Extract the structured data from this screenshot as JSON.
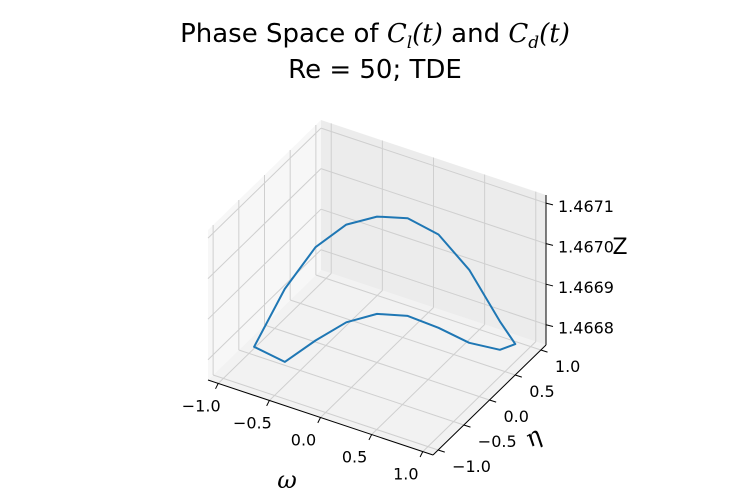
{
  "chart_data": {
    "type": "line",
    "projection": "3d",
    "title": {
      "line1": {
        "prefix": "Phase Space of ",
        "v1": "C",
        "s1": "l",
        "t1": "(t)",
        "mid": " and ",
        "v2": "C",
        "s2": "d",
        "t2": "(t)"
      },
      "line2": "Re = 50; TDE"
    },
    "xlabel": "ω",
    "ylabel": "η",
    "zlabel": "Z",
    "xlim": [
      -1.1,
      1.1
    ],
    "ylim": [
      -1.1,
      1.1
    ],
    "zlim": [
      1.46675,
      1.46712
    ],
    "xticks": [
      {
        "value": -1.0,
        "label": "−1.0"
      },
      {
        "value": -0.5,
        "label": "−0.5"
      },
      {
        "value": 0.0,
        "label": "0.0"
      },
      {
        "value": 0.5,
        "label": "0.5"
      },
      {
        "value": 1.0,
        "label": "1.0"
      }
    ],
    "yticks": [
      {
        "value": -1.0,
        "label": "−1.0"
      },
      {
        "value": -0.5,
        "label": "−0.5"
      },
      {
        "value": 0.0,
        "label": "0.0"
      },
      {
        "value": 0.5,
        "label": "0.5"
      },
      {
        "value": 1.0,
        "label": "1.0"
      }
    ],
    "zticks": [
      {
        "value": 1.4668,
        "label": "1.4668"
      },
      {
        "value": 1.4669,
        "label": "1.4669"
      },
      {
        "value": 1.467,
        "label": "1.4670"
      },
      {
        "value": 1.4671,
        "label": "1.4671"
      }
    ],
    "grid": true,
    "series": [
      {
        "color": "#1f77b4",
        "points": [
          {
            "x": -0.8,
            "y": -0.8,
            "z": 1.46682
          },
          {
            "x": -0.6,
            "y": -0.6,
            "z": 1.466955
          },
          {
            "x": -0.4,
            "y": -0.4,
            "z": 1.46705
          },
          {
            "x": -0.2,
            "y": -0.2,
            "z": 1.467098
          },
          {
            "x": 0.0,
            "y": 0.0,
            "z": 1.46711
          },
          {
            "x": 0.2,
            "y": 0.2,
            "z": 1.467098
          },
          {
            "x": 0.4,
            "y": 0.4,
            "z": 1.46705
          },
          {
            "x": 0.6,
            "y": 0.6,
            "z": 1.466955
          },
          {
            "x": 0.8,
            "y": 0.8,
            "z": 1.46682
          },
          {
            "x": 0.9,
            "y": 0.9,
            "z": 1.46676
          },
          {
            "x": 0.8,
            "y": 0.8,
            "z": 1.46675
          },
          {
            "x": 0.6,
            "y": 0.6,
            "z": 1.466775
          },
          {
            "x": 0.4,
            "y": 0.4,
            "z": 1.46682
          },
          {
            "x": 0.2,
            "y": 0.2,
            "z": 1.466857
          },
          {
            "x": 0.0,
            "y": 0.0,
            "z": 1.46687
          },
          {
            "x": -0.2,
            "y": -0.2,
            "z": 1.466857
          },
          {
            "x": -0.4,
            "y": -0.4,
            "z": 1.46682
          },
          {
            "x": -0.6,
            "y": -0.6,
            "z": 1.466775
          },
          {
            "x": -0.8,
            "y": -0.8,
            "z": 1.46682
          }
        ]
      }
    ]
  }
}
